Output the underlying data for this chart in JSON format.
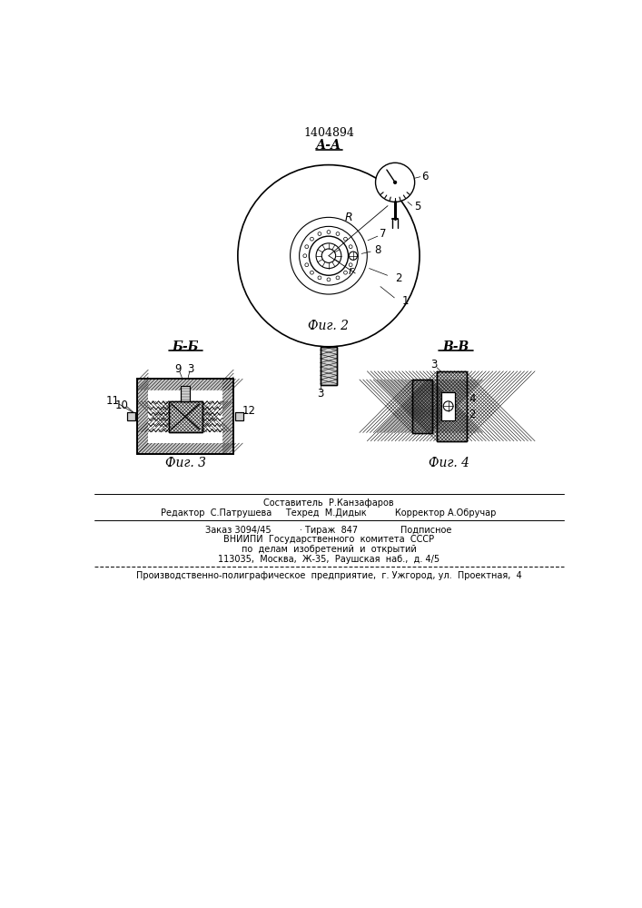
{
  "patent_number": "1404894",
  "section_aa_label": "А-А",
  "section_bb_label": "Б-Б",
  "section_vv_label": "В-В",
  "fig2_label": "Фиг. 2",
  "fig3_label": "Фиг. 3",
  "fig4_label": "Фиг. 4",
  "footer_line1": "Составитель  Р.Канзафаров",
  "footer_line2": "Редактор  С.Патрушева     Техред  М.Дидык          Корректор А.Обручар",
  "footer_line3": "Заказ 3094/45          · Тираж  847               Подписное",
  "footer_line4": "ВНИИПИ  Государственного  комитета  СССР",
  "footer_line5": "по  делам  изобретений  и  открытий",
  "footer_line6": "113035,  Москва,  Ж-35,  Раушская  наб.,  д. 4/5",
  "footer_line7": "Производственно-полиграфическое  предприятие,  г. Ужгород, ул.  Проектная,  4",
  "bg_color": "#ffffff",
  "line_color": "#000000"
}
